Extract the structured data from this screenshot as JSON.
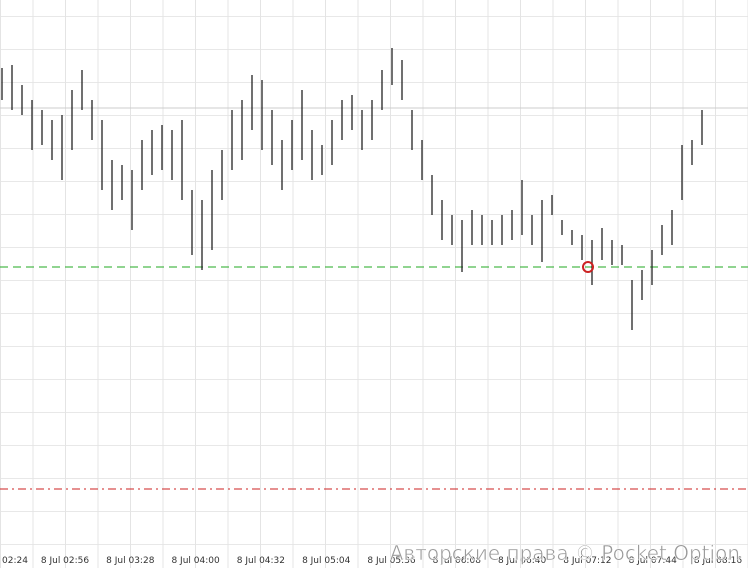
{
  "chart_data": {
    "type": "hilo",
    "x_labels": [
      "02:24",
      "8 Jul 02:56",
      "8 Jul 03:28",
      "8 Jul 04:00",
      "8 Jul 04:32",
      "8 Jul 05:04",
      "8 Jul 05:36",
      "8 Jul 06:08",
      "8 Jul 06:40",
      "8 Jul 07:12",
      "8 Jul 07:44",
      "8 Jul 08:16"
    ],
    "series": [
      {
        "name": "high",
        "color": "#222222",
        "values": [
          482,
          485,
          465,
          450,
          440,
          430,
          435,
          460,
          480,
          450,
          430,
          390,
          385,
          380,
          410,
          420,
          425,
          420,
          430,
          360,
          350,
          380,
          400,
          440,
          450,
          475,
          470,
          440,
          410,
          430,
          460,
          420,
          405,
          430,
          450,
          455,
          440,
          450,
          480,
          502,
          490,
          440,
          410,
          375,
          350,
          335,
          330,
          340,
          335,
          330,
          335,
          340,
          370,
          335,
          350,
          355,
          330,
          320,
          315,
          310,
          322,
          310,
          305,
          270,
          280,
          300,
          325,
          340,
          405,
          410,
          440
        ]
      },
      {
        "name": "low",
        "color": "#222222",
        "values": [
          450,
          440,
          435,
          400,
          405,
          390,
          370,
          400,
          440,
          410,
          360,
          340,
          350,
          320,
          360,
          375,
          380,
          370,
          350,
          295,
          280,
          300,
          350,
          380,
          390,
          420,
          400,
          385,
          360,
          380,
          390,
          370,
          375,
          385,
          410,
          420,
          400,
          410,
          440,
          465,
          450,
          400,
          370,
          335,
          310,
          305,
          278,
          305,
          305,
          305,
          305,
          310,
          315,
          305,
          288,
          335,
          315,
          305,
          290,
          265,
          290,
          285,
          285,
          220,
          250,
          265,
          295,
          305,
          350,
          385,
          405
        ]
      }
    ],
    "levels": [
      {
        "value": 442,
        "color": "#cccccc",
        "style": "solid"
      },
      {
        "value": 283,
        "color": "#22aa22",
        "style": "dash"
      },
      {
        "value": 61,
        "color": "#cc2222",
        "style": "dashdot"
      }
    ],
    "marker": {
      "value": 283,
      "color": "#cc2222"
    },
    "ylim": [
      0,
      550
    ],
    "watermark": "Авторские права © Pocket Option"
  }
}
